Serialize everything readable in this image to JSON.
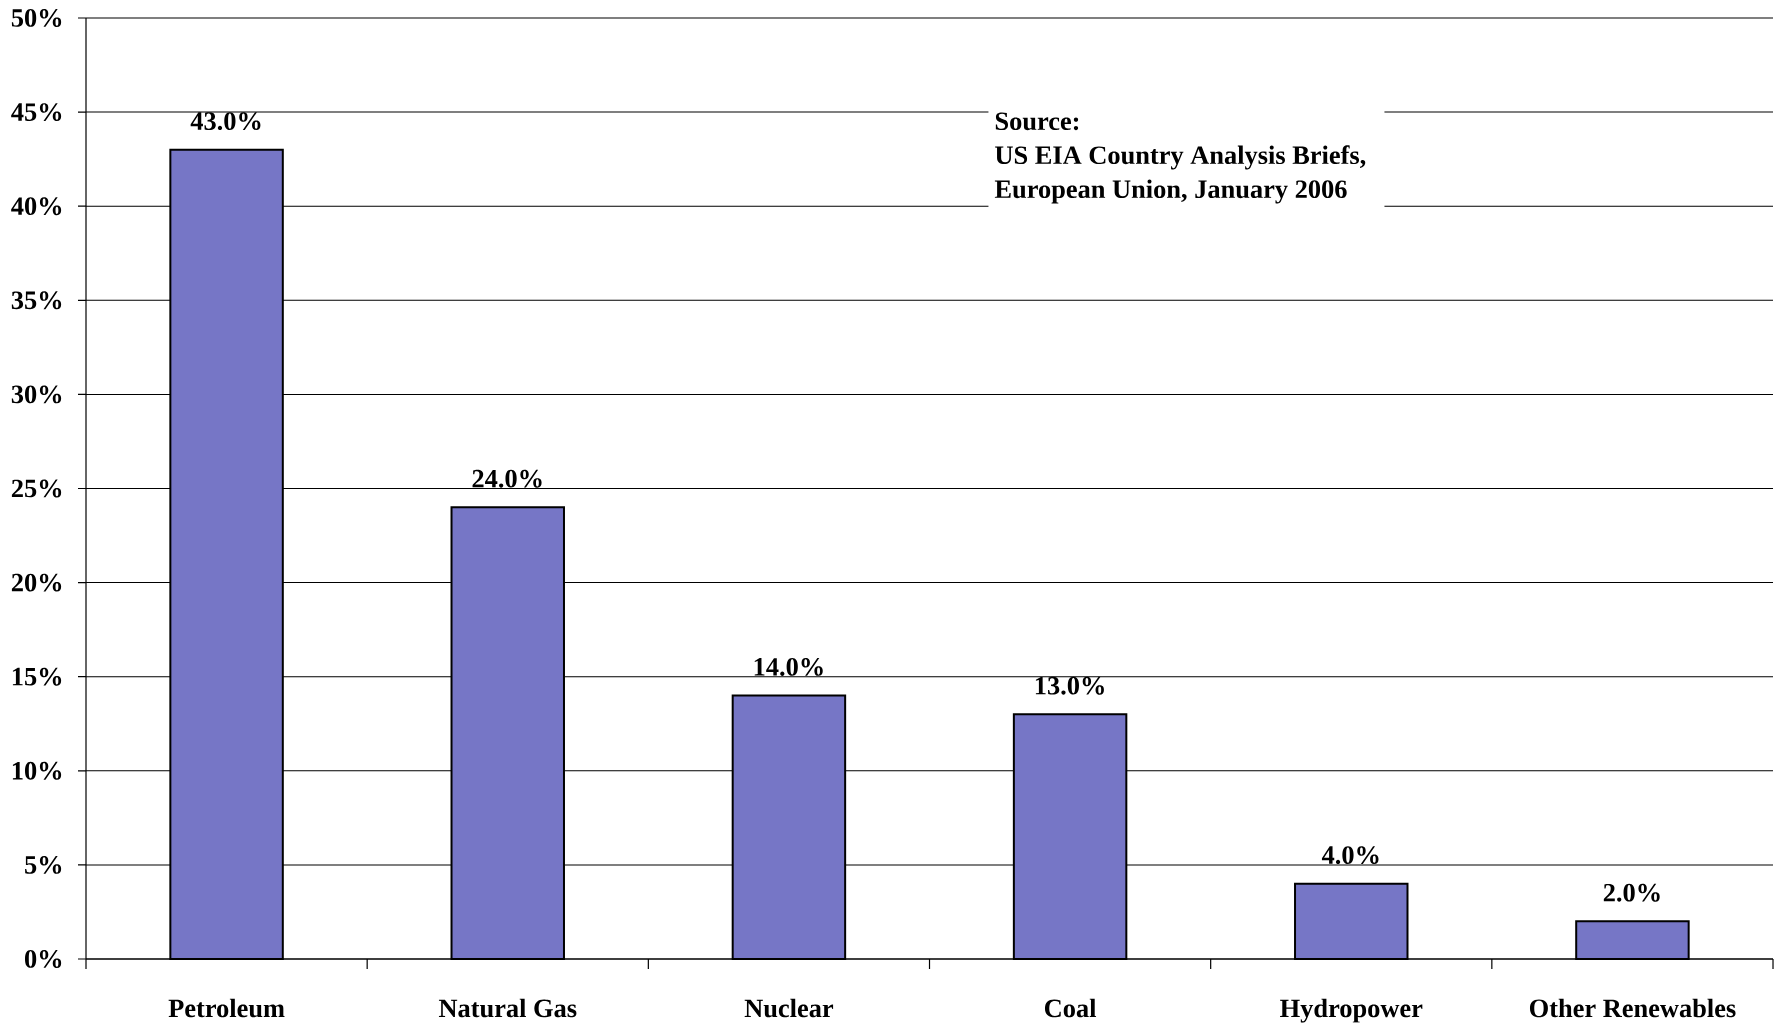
{
  "chart_data": {
    "type": "bar",
    "categories": [
      "Petroleum",
      "Natural Gas",
      "Nuclear",
      "Coal",
      "Hydropower",
      "Other Renewables"
    ],
    "values": [
      43,
      24,
      14,
      13,
      4,
      2
    ],
    "value_labels": [
      "43.0%",
      "24.0%",
      "14.0%",
      "13.0%",
      "4.0%",
      "2.0%"
    ],
    "color": "#7676c6",
    "ylim": [
      0,
      50
    ],
    "yticks": [
      {
        "value": 0,
        "label": "0%"
      },
      {
        "value": 5,
        "label": "5%"
      },
      {
        "value": 10,
        "label": "10%"
      },
      {
        "value": 15,
        "label": "15%"
      },
      {
        "value": 20,
        "label": "20%"
      },
      {
        "value": 25,
        "label": "25%"
      },
      {
        "value": 30,
        "label": "30%"
      },
      {
        "value": 35,
        "label": "35%"
      },
      {
        "value": 40,
        "label": "40%"
      },
      {
        "value": 45,
        "label": "45%"
      },
      {
        "value": 50,
        "label": "50%"
      }
    ],
    "grid": "y",
    "annotations": [
      "Source:",
      "US EIA Country Analysis Briefs, European Union, January 2006"
    ]
  }
}
